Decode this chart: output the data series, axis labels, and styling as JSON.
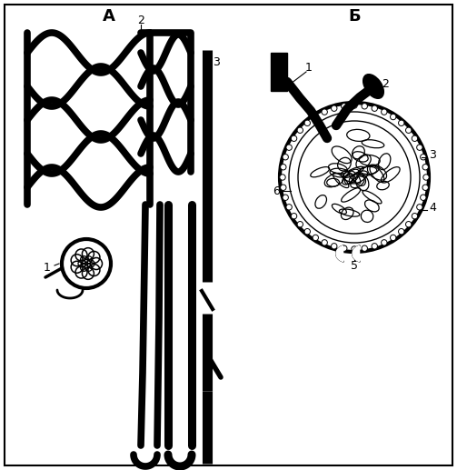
{
  "title_A": "А",
  "title_B": "Б",
  "bg_color": "#ffffff",
  "border_color": "#000000",
  "label_A_1": "1",
  "label_A_2": "2",
  "label_A_3": "3",
  "label_B_1": "1",
  "label_B_2": "2",
  "label_B_3": "3",
  "label_B_4": "4",
  "label_B_5": "5",
  "label_B_6": "6",
  "line_color": "#000000",
  "fill_color": "#ffffff",
  "thick_lw": 6,
  "medium_lw": 3,
  "thin_lw": 1.5
}
